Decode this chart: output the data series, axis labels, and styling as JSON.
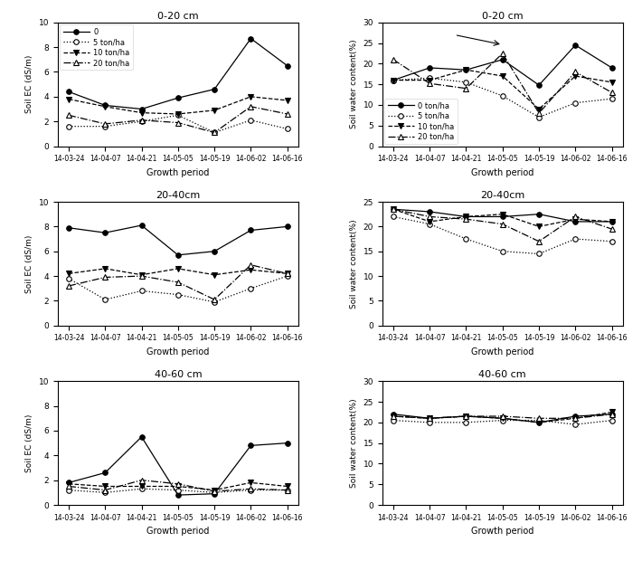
{
  "x_labels": [
    "14-03-24",
    "14-04-07",
    "14-04-21",
    "14-05-05",
    "14-05-19",
    "14-06-02",
    "14-06-16"
  ],
  "x_positions": [
    0,
    1,
    2,
    3,
    4,
    5,
    6
  ],
  "ec_0_20": {
    "t0": [
      4.4,
      3.3,
      3.0,
      3.9,
      4.6,
      8.7,
      6.5
    ],
    "t5": [
      1.6,
      1.6,
      2.0,
      2.5,
      1.1,
      2.1,
      1.4
    ],
    "t10": [
      3.8,
      3.2,
      2.7,
      2.6,
      2.9,
      4.0,
      3.7
    ],
    "t20": [
      2.5,
      1.8,
      2.1,
      1.9,
      1.1,
      3.2,
      2.6
    ]
  },
  "ec_20_40": {
    "t0": [
      7.9,
      7.5,
      8.1,
      5.7,
      6.0,
      7.7,
      8.0
    ],
    "t5": [
      3.8,
      2.1,
      2.8,
      2.5,
      1.9,
      3.0,
      4.0
    ],
    "t10": [
      4.2,
      4.6,
      4.1,
      4.6,
      4.1,
      4.5,
      4.2
    ],
    "t20": [
      3.2,
      3.9,
      4.0,
      3.5,
      2.1,
      4.9,
      4.2
    ]
  },
  "ec_40_60": {
    "t0": [
      1.8,
      2.6,
      5.5,
      0.8,
      0.9,
      4.8,
      5.0
    ],
    "t5": [
      1.2,
      1.0,
      1.3,
      1.2,
      1.0,
      1.2,
      1.2
    ],
    "t10": [
      1.7,
      1.5,
      1.5,
      1.5,
      1.2,
      1.8,
      1.5
    ],
    "t20": [
      1.5,
      1.2,
      2.0,
      1.7,
      1.1,
      1.3,
      1.2
    ]
  },
  "wc_0_20": {
    "t0": [
      16.0,
      19.0,
      18.5,
      21.0,
      14.8,
      24.5,
      19.0
    ],
    "t5": [
      16.0,
      16.5,
      15.5,
      12.2,
      7.0,
      10.5,
      11.5
    ],
    "t10": [
      16.0,
      16.0,
      18.5,
      17.0,
      9.0,
      17.0,
      15.5
    ],
    "t20": [
      21.0,
      15.2,
      14.0,
      22.5,
      8.0,
      18.0,
      13.0
    ]
  },
  "wc_20_40": {
    "t0": [
      23.5,
      23.0,
      22.0,
      22.0,
      22.5,
      21.0,
      21.0
    ],
    "t5": [
      22.0,
      20.5,
      17.5,
      15.0,
      14.5,
      17.5,
      17.0
    ],
    "t10": [
      23.5,
      21.0,
      22.0,
      22.5,
      20.0,
      21.5,
      21.0
    ],
    "t20": [
      23.5,
      22.0,
      21.5,
      20.5,
      17.0,
      22.0,
      19.5
    ]
  },
  "wc_40_60": {
    "t0": [
      22.0,
      21.0,
      21.5,
      21.0,
      20.0,
      21.5,
      22.0
    ],
    "t5": [
      20.5,
      20.0,
      20.0,
      20.5,
      20.5,
      19.5,
      20.5
    ],
    "t10": [
      21.5,
      21.0,
      21.5,
      21.0,
      20.0,
      21.0,
      22.5
    ],
    "t20": [
      21.5,
      21.0,
      21.5,
      21.5,
      21.0,
      21.0,
      22.0
    ]
  },
  "ec_ylims": [
    0,
    10
  ],
  "wc_0_20_ylim": [
    0,
    30
  ],
  "wc_20_40_ylim": [
    0,
    25
  ],
  "wc_40_60_ylim": [
    0,
    30
  ],
  "titles_left": [
    "0-20 cm",
    "20-40cm",
    "40-60 cm"
  ],
  "titles_right": [
    "0-20 cm",
    "20-40cm",
    "40-60 cm"
  ],
  "ylabel_ec": "Soil EC (dS/m)",
  "ylabel_wc": "Soil water content(%)",
  "xlabel": "Growth period",
  "legend_labels": [
    "0",
    "5 ton/ha",
    "10 ton/ha",
    "20 ton/ha"
  ],
  "legend_labels_wc": [
    "0 ton/ha",
    "5 ton/ha",
    "10 ton/ha",
    "20 ton/ha"
  ],
  "line_styles": [
    "-",
    ":",
    "--",
    "-."
  ],
  "markers": [
    "o",
    "o",
    "v",
    "^"
  ],
  "fillstyles": [
    "full",
    "none",
    "full",
    "none"
  ],
  "colors": [
    "black",
    "black",
    "black",
    "black"
  ]
}
